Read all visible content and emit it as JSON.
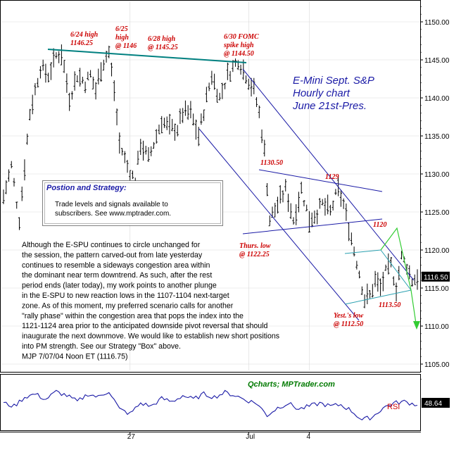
{
  "chart_data": {
    "type": "ohlc",
    "title_lines": [
      "E-Mini Sept. S&P",
      "Hourly chart",
      "June 21st-Pres."
    ],
    "ylim": [
      1102.5,
      1152.5
    ],
    "yticks": [
      "1150.00",
      "1145.00",
      "1140.00",
      "1135.00",
      "1130.00",
      "1125.00",
      "1120.00",
      "1115.00",
      "1110.00",
      "1105.00"
    ],
    "ytick_values": [
      1150,
      1145,
      1140,
      1135,
      1130,
      1125,
      1120,
      1115,
      1110,
      1105
    ],
    "xticks": [
      "27",
      "Jul",
      "4"
    ],
    "xtick_bars": [
      48,
      93,
      116
    ],
    "last_price_tag": "1116.50",
    "last_price": 1116.5,
    "bar_count": 158,
    "anchors": [
      [
        0,
        1127
      ],
      [
        3,
        1131
      ],
      [
        6,
        1124
      ],
      [
        10,
        1138
      ],
      [
        14,
        1144
      ],
      [
        17,
        1143
      ],
      [
        20,
        1145.5
      ],
      [
        22,
        1146
      ],
      [
        25,
        1140
      ],
      [
        28,
        1143
      ],
      [
        31,
        1142
      ],
      [
        33,
        1143
      ],
      [
        35,
        1141
      ],
      [
        37,
        1144
      ],
      [
        39,
        1145.5
      ],
      [
        40,
        1146
      ],
      [
        42,
        1141
      ],
      [
        44,
        1134
      ],
      [
        47,
        1131
      ],
      [
        50,
        1129
      ],
      [
        52,
        1134
      ],
      [
        55,
        1132
      ],
      [
        58,
        1135
      ],
      [
        60,
        1137
      ],
      [
        63,
        1136
      ],
      [
        66,
        1136
      ],
      [
        68,
        1138
      ],
      [
        71,
        1138
      ],
      [
        74,
        1135
      ],
      [
        77,
        1140
      ],
      [
        79,
        1143
      ],
      [
        82,
        1140
      ],
      [
        85,
        1143
      ],
      [
        87,
        1144
      ],
      [
        89,
        1145
      ],
      [
        92,
        1143
      ],
      [
        95,
        1141
      ],
      [
        97,
        1138
      ],
      [
        99,
        1133
      ],
      [
        101,
        1124
      ],
      [
        104,
        1126
      ],
      [
        107,
        1128
      ],
      [
        110,
        1124
      ],
      [
        113,
        1128
      ],
      [
        116,
        1124
      ],
      [
        119,
        1125
      ],
      [
        121,
        1126
      ],
      [
        124,
        1125
      ],
      [
        127,
        1128
      ],
      [
        129,
        1126
      ],
      [
        131,
        1123
      ],
      [
        133,
        1120
      ],
      [
        135,
        1117
      ],
      [
        137,
        1113.5
      ],
      [
        139,
        1114
      ],
      [
        141,
        1116
      ],
      [
        143,
        1115
      ],
      [
        145,
        1117
      ],
      [
        147,
        1118
      ],
      [
        149,
        1115
      ],
      [
        151,
        1119
      ],
      [
        153,
        1118
      ],
      [
        155,
        1116
      ],
      [
        157,
        1116.5
      ]
    ],
    "annotations": [
      {
        "lines": [
          "6/24 high",
          "1146.25"
        ],
        "bar": 25,
        "color": "#cc0000"
      },
      {
        "lines": [
          "6/25",
          "high",
          "@ 1146"
        ],
        "bar": 38,
        "color": "#cc0000"
      },
      {
        "lines": [
          "6/28 high",
          "@ 1145.25"
        ],
        "bar": 53,
        "color": "#cc0000"
      },
      {
        "lines": [
          "6/30 FOMC",
          "spike high",
          "@ 1144.50"
        ],
        "bar": 88,
        "color": "#cc0000"
      },
      {
        "lines": [
          "1130.50"
        ],
        "bar": 104,
        "color": "#cc0000"
      },
      {
        "lines": [
          "1129"
        ],
        "bar": 127,
        "color": "#cc0000"
      },
      {
        "lines": [
          "Thurs. low",
          "@ 1122.25"
        ],
        "bar": 95,
        "color": "#cc0000"
      },
      {
        "lines": [
          "1120"
        ],
        "bar": 149,
        "color": "#cc0000"
      },
      {
        "lines": [
          "Yest.'s low",
          "@ 1112.50"
        ],
        "bar": 132,
        "color": "#cc0000"
      },
      {
        "lines": [
          "1113.50"
        ],
        "bar": 148,
        "color": "#cc0000"
      }
    ],
    "rsi": {
      "label": "RSI",
      "value": "48.64",
      "anchors": [
        [
          0,
          50
        ],
        [
          4,
          46
        ],
        [
          8,
          58
        ],
        [
          12,
          62
        ],
        [
          16,
          55
        ],
        [
          20,
          65
        ],
        [
          24,
          60
        ],
        [
          28,
          52
        ],
        [
          32,
          62
        ],
        [
          36,
          58
        ],
        [
          40,
          66
        ],
        [
          44,
          42
        ],
        [
          48,
          36
        ],
        [
          52,
          50
        ],
        [
          56,
          46
        ],
        [
          60,
          56
        ],
        [
          64,
          52
        ],
        [
          68,
          60
        ],
        [
          72,
          55
        ],
        [
          76,
          62
        ],
        [
          80,
          58
        ],
        [
          84,
          64
        ],
        [
          88,
          60
        ],
        [
          92,
          54
        ],
        [
          96,
          50
        ],
        [
          100,
          34
        ],
        [
          104,
          44
        ],
        [
          108,
          50
        ],
        [
          112,
          42
        ],
        [
          116,
          46
        ],
        [
          120,
          50
        ],
        [
          124,
          46
        ],
        [
          128,
          48
        ],
        [
          132,
          40
        ],
        [
          136,
          28
        ],
        [
          140,
          32
        ],
        [
          144,
          44
        ],
        [
          148,
          50
        ],
        [
          152,
          52
        ],
        [
          156,
          48.64
        ]
      ]
    }
  },
  "strategy_box": {
    "title": "Postion and Strategy:",
    "line1": "Trade levels and signals available to",
    "line2": "subscribers.  See www.mptrader.com."
  },
  "commentary": [
    "Although the E-SPU continues to circle unchanged for",
    "the session, the pattern carved-out from late yesterday",
    "continues to resemble a sideways congestion area within",
    "the dominant near term downtrend. As such, after the rest",
    "period ends (later today), my work points to another plunge",
    "in the E-SPU to new reaction lows in the 1107-1104 next-target",
    "zone. As of this moment, my preferred scenario calls for another",
    "\"rally phase\" within the congestion area that pops the index into the",
    "1121-1124 area prior to the anticipated downside pivot reversal that should",
    "inaugurate the next downmove. We would like to establish new short positions",
    "into PM strength. See our Strategy \"Box\" above.",
    "MJP 7/07/04 Noon ET (1116.75)"
  ],
  "credit": "Qcharts; MPTrader.com",
  "colors": {
    "price": "#000000",
    "resistance_line": "#008080",
    "channel": "#1a1aa6",
    "projection": "#33cc33",
    "annotation": "#cc0000",
    "rsi_line": "#1a1aa6",
    "tag_bg": "#000000"
  }
}
